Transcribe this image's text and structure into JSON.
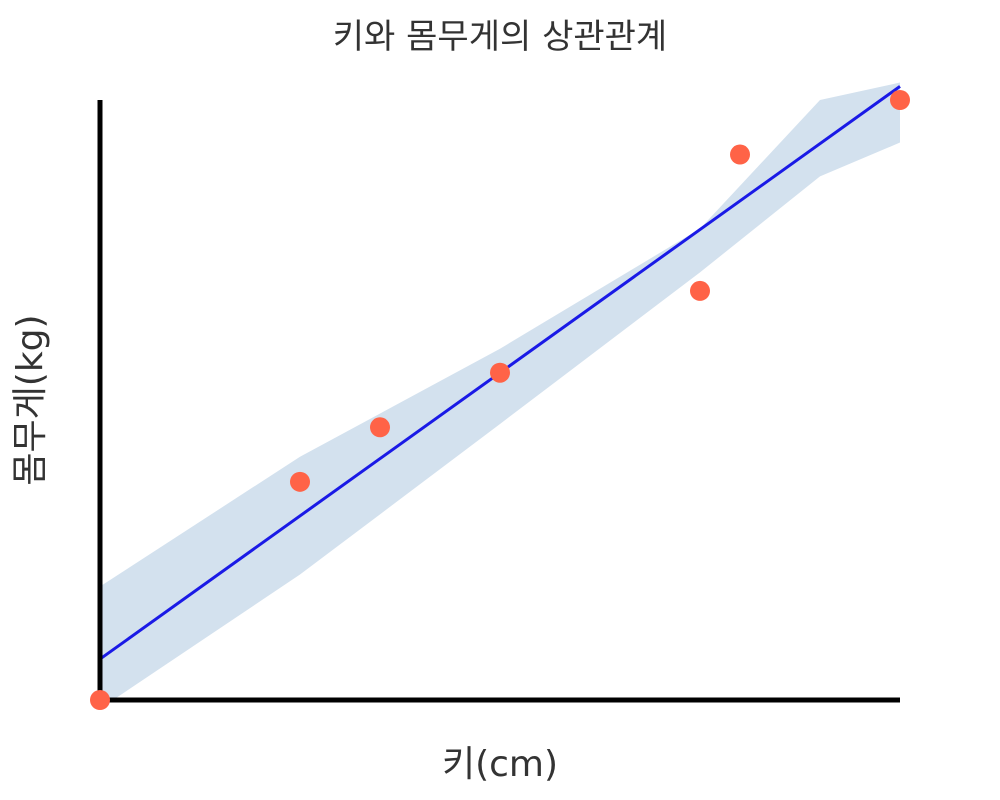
{
  "chart_data": {
    "type": "scatter",
    "title": "키와 몸무게의 상관관계",
    "xlabel": "키(cm)",
    "ylabel": "몸무게(kg)",
    "xlim": [
      150,
      190
    ],
    "ylim": [
      45,
      100
    ],
    "grid": false,
    "points": [
      {
        "x": 150,
        "y": 45
      },
      {
        "x": 160,
        "y": 65
      },
      {
        "x": 164,
        "y": 70
      },
      {
        "x": 170,
        "y": 75
      },
      {
        "x": 180,
        "y": 82.5
      },
      {
        "x": 182,
        "y": 95
      },
      {
        "x": 190,
        "y": 100
      }
    ],
    "trendline": {
      "x_start": 150,
      "y_start": 48.75,
      "x_end": 190,
      "y_end": 101.25
    },
    "confidence_band": {
      "x": [
        150,
        160,
        170,
        180,
        186,
        190
      ],
      "lower": [
        44.2,
        56.5,
        70.3,
        84.2,
        93.0,
        96.1
      ],
      "upper": [
        55.4,
        67.3,
        77.2,
        88.2,
        100.0,
        101.6
      ]
    },
    "colors": {
      "points": "#ff6347",
      "trendline": "#1a1ae6",
      "band": "#d3e1ee",
      "axes": "#000000"
    }
  }
}
